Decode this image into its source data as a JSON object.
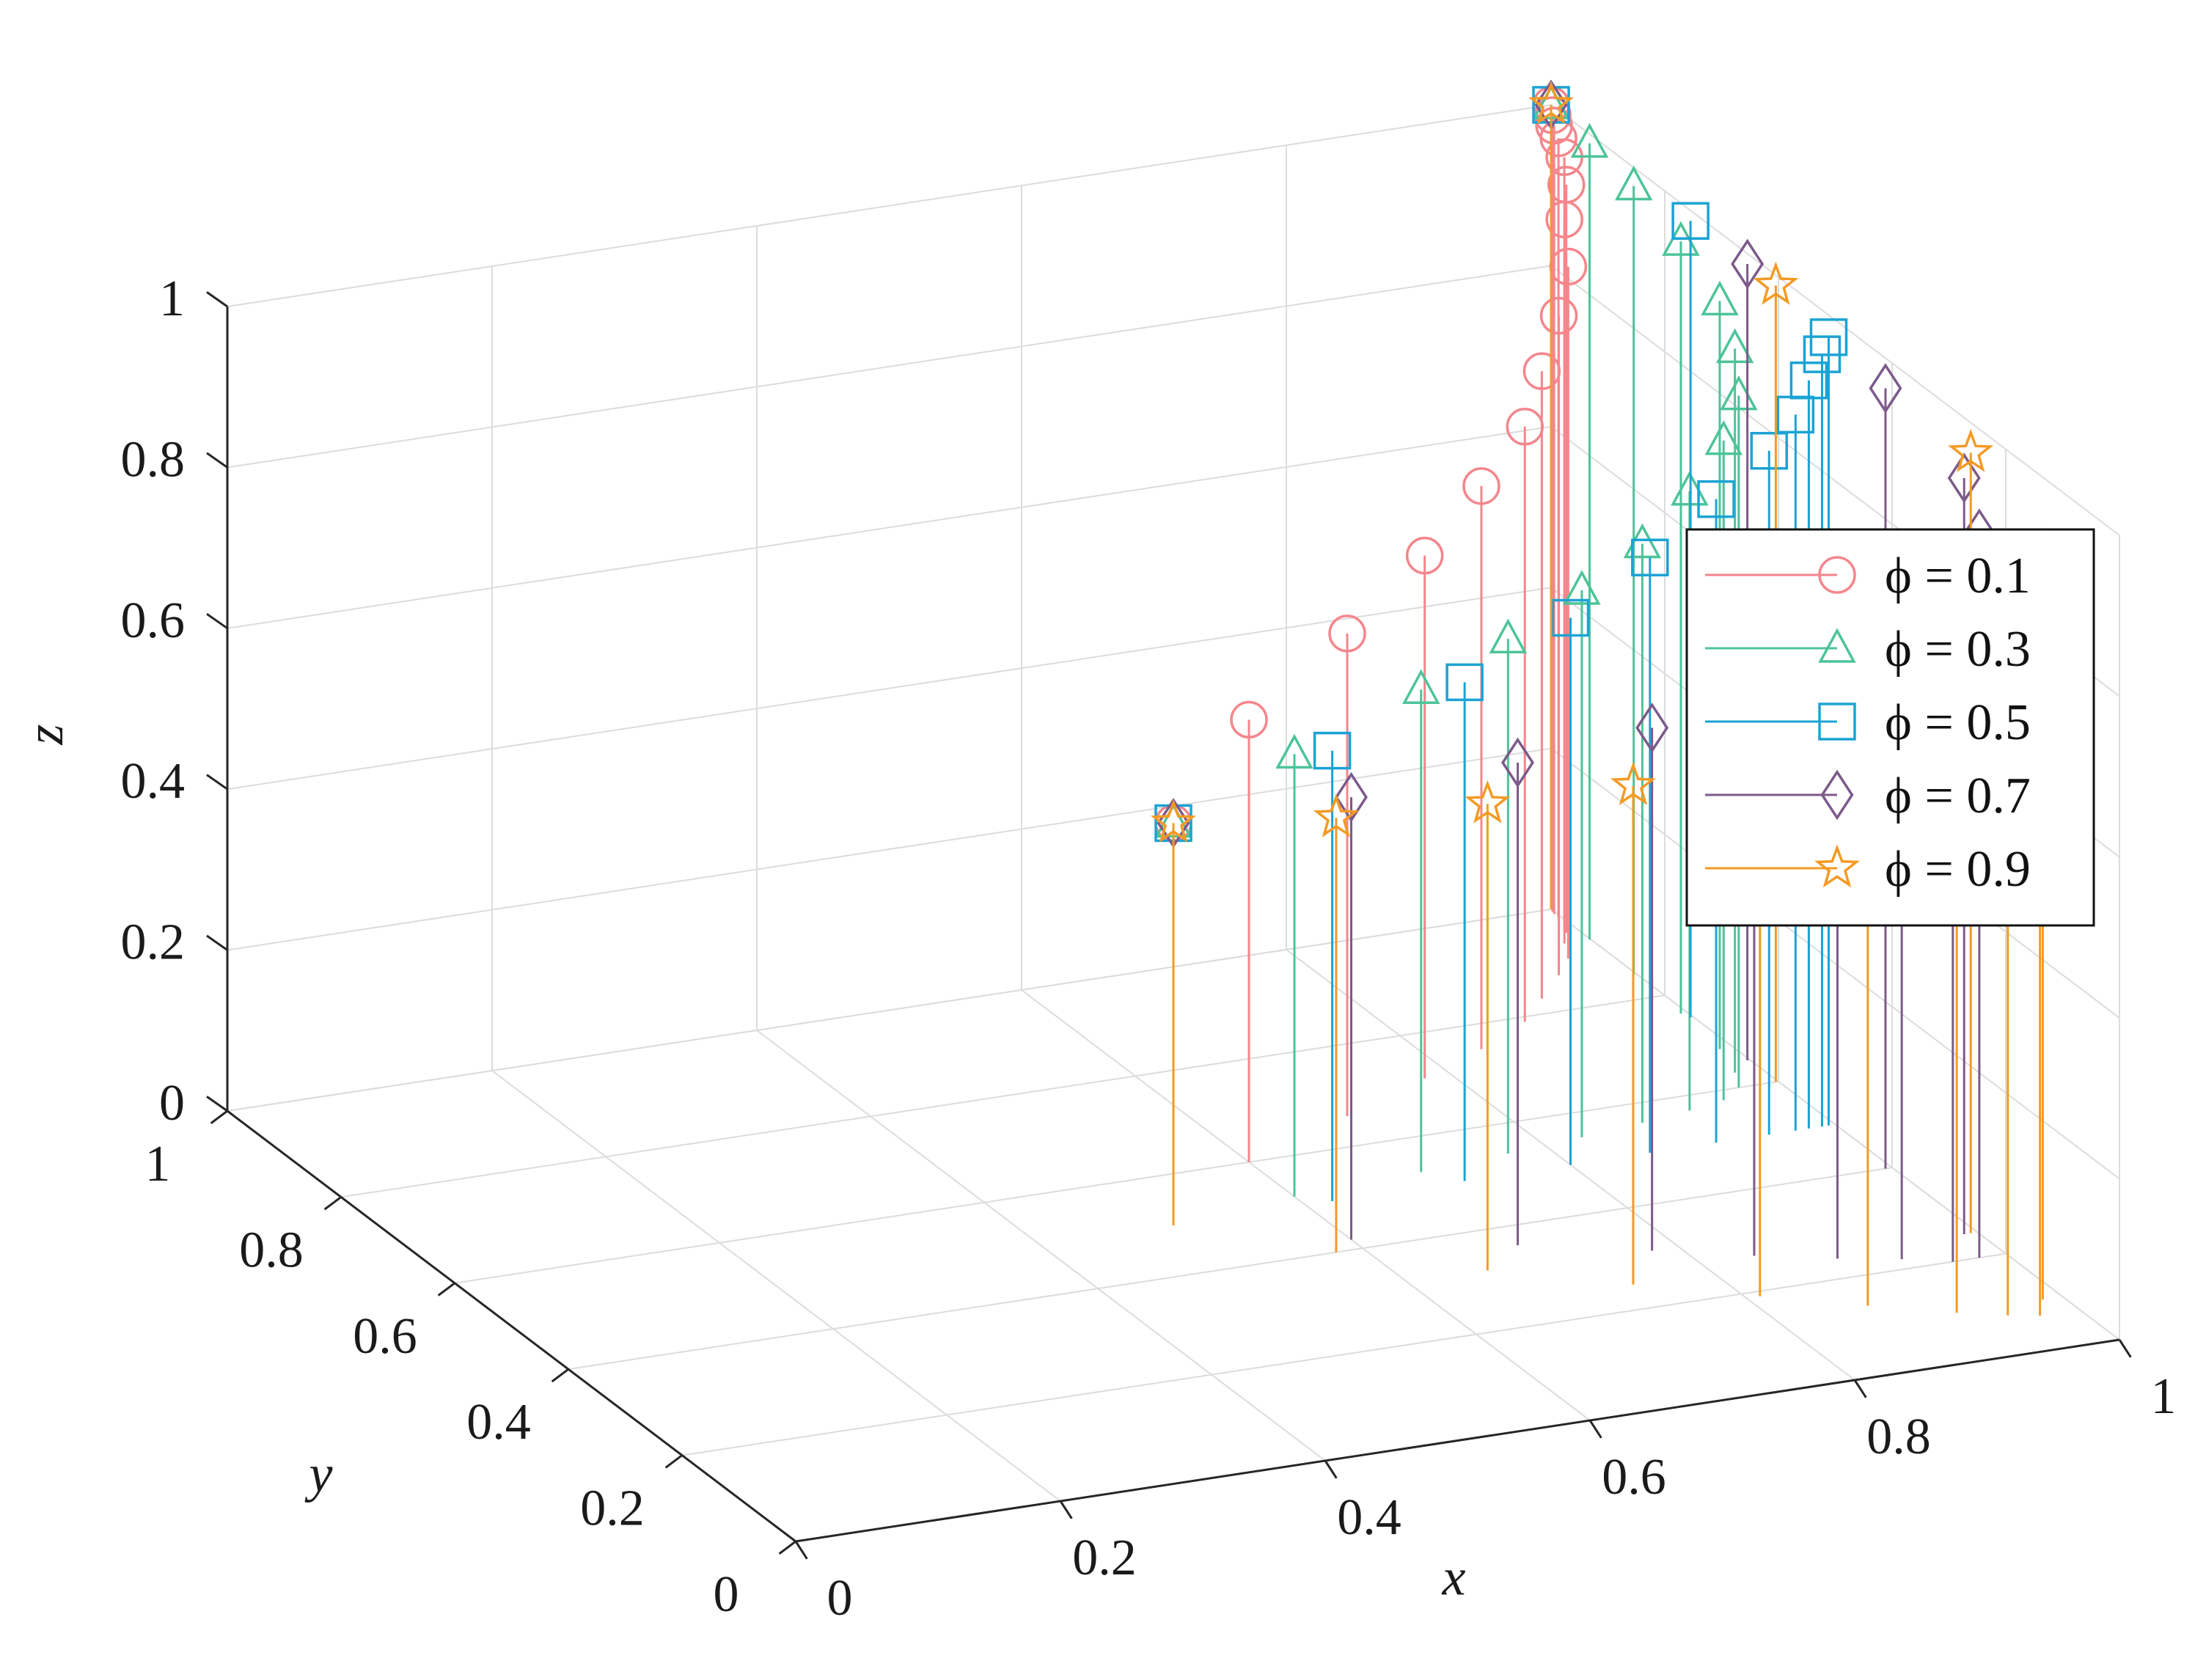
{
  "chart_data": {
    "type": "3d-stem",
    "xlabel": "x",
    "ylabel": "y",
    "zlabel": "z",
    "xlim": [
      0,
      1
    ],
    "ylim": [
      0,
      1
    ],
    "zlim": [
      0,
      1
    ],
    "grid": true,
    "legend_position": "right",
    "x_ticks": [
      "0",
      "0.2",
      "0.4",
      "0.6",
      "0.8",
      "1"
    ],
    "y_ticks": [
      "0",
      "0.2",
      "0.4",
      "0.6",
      "0.8",
      "1"
    ],
    "z_ticks": [
      "0",
      "0.2",
      "0.4",
      "0.6",
      "0.8",
      "1"
    ],
    "series": [
      {
        "name": "ϕ = 0.1",
        "phi": "0.1",
        "marker": "circle",
        "color": "#f4868c",
        "points": [
          [
            0.5,
            0.5,
            0.5
          ],
          [
            0.6,
            0.6,
            0.55
          ],
          [
            0.7,
            0.66,
            0.6
          ],
          [
            0.78,
            0.71,
            0.65
          ],
          [
            0.84,
            0.75,
            0.7
          ],
          [
            0.89,
            0.79,
            0.74
          ],
          [
            0.92,
            0.83,
            0.78
          ],
          [
            0.95,
            0.87,
            0.82
          ],
          [
            0.97,
            0.9,
            0.86
          ],
          [
            0.98,
            0.93,
            0.9
          ],
          [
            0.99,
            0.95,
            0.93
          ],
          [
            0.995,
            0.965,
            0.955
          ],
          [
            0.997,
            0.98,
            0.97
          ],
          [
            0.998,
            0.99,
            0.98
          ],
          [
            0.999,
            0.995,
            0.99
          ],
          [
            1.0,
            1.0,
            1.0
          ]
        ]
      },
      {
        "name": "ϕ = 0.3",
        "phi": "0.3",
        "marker": "triangle",
        "color": "#4cc497",
        "points": [
          [
            0.5,
            0.5,
            0.5
          ],
          [
            0.6,
            0.52,
            0.55
          ],
          [
            0.7,
            0.53,
            0.6
          ],
          [
            0.77,
            0.54,
            0.64
          ],
          [
            0.83,
            0.55,
            0.68
          ],
          [
            0.88,
            0.56,
            0.72
          ],
          [
            0.92,
            0.57,
            0.77
          ],
          [
            0.95,
            0.58,
            0.82
          ],
          [
            0.97,
            0.6,
            0.86
          ],
          [
            0.98,
            0.63,
            0.9
          ],
          [
            0.99,
            0.68,
            0.93
          ],
          [
            0.995,
            0.76,
            0.96
          ],
          [
            0.998,
            0.85,
            0.98
          ],
          [
            0.999,
            0.93,
            0.99
          ],
          [
            1.0,
            1.0,
            1.0
          ]
        ]
      },
      {
        "name": "ϕ = 0.5",
        "phi": "0.5",
        "marker": "square",
        "color": "#1ba3d5",
        "points": [
          [
            0.5,
            0.5,
            0.5
          ],
          [
            0.62,
            0.5,
            0.56
          ],
          [
            0.72,
            0.5,
            0.62
          ],
          [
            0.8,
            0.5,
            0.68
          ],
          [
            0.86,
            0.5,
            0.74
          ],
          [
            0.91,
            0.5,
            0.8
          ],
          [
            0.95,
            0.5,
            0.85
          ],
          [
            0.97,
            0.5,
            0.89
          ],
          [
            0.98,
            0.5,
            0.93
          ],
          [
            0.99,
            0.5,
            0.96
          ],
          [
            0.995,
            0.5,
            0.98
          ],
          [
            0.998,
            0.75,
            0.99
          ],
          [
            1.0,
            1.0,
            1.0
          ]
        ]
      },
      {
        "name": "ϕ = 0.7",
        "phi": "0.7",
        "marker": "diamond",
        "color": "#7c5a8a",
        "points": [
          [
            0.5,
            0.5,
            0.5
          ],
          [
            0.6,
            0.42,
            0.55
          ],
          [
            0.7,
            0.36,
            0.6
          ],
          [
            0.78,
            0.31,
            0.65
          ],
          [
            0.84,
            0.27,
            0.7
          ],
          [
            0.89,
            0.24,
            0.75
          ],
          [
            0.93,
            0.22,
            0.8
          ],
          [
            0.96,
            0.2,
            0.85
          ],
          [
            0.98,
            0.2,
            0.9
          ],
          [
            0.99,
            0.25,
            0.94
          ],
          [
            0.995,
            0.4,
            0.97
          ],
          [
            0.998,
            0.65,
            0.99
          ],
          [
            1.0,
            1.0,
            1.0
          ]
        ]
      },
      {
        "name": "ϕ = 0.9",
        "phi": "0.9",
        "marker": "star",
        "color": "#f39a24",
        "points": [
          [
            0.5,
            0.5,
            0.5
          ],
          [
            0.58,
            0.4,
            0.54
          ],
          [
            0.66,
            0.32,
            0.58
          ],
          [
            0.74,
            0.25,
            0.62
          ],
          [
            0.81,
            0.19,
            0.67
          ],
          [
            0.87,
            0.14,
            0.72
          ],
          [
            0.92,
            0.1,
            0.78
          ],
          [
            0.95,
            0.08,
            0.84
          ],
          [
            0.97,
            0.07,
            0.89
          ],
          [
            0.985,
            0.1,
            0.93
          ],
          [
            0.995,
            0.25,
            0.97
          ],
          [
            0.998,
            0.6,
            0.99
          ],
          [
            1.0,
            1.0,
            1.0
          ]
        ]
      }
    ]
  }
}
